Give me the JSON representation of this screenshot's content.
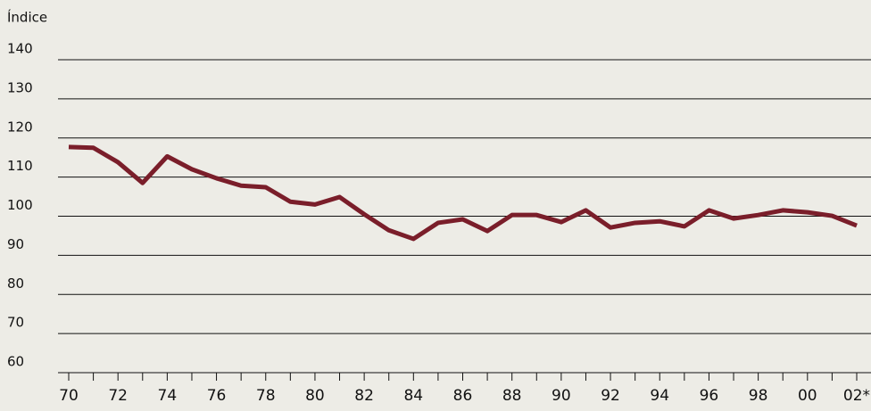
{
  "chart_data": {
    "type": "line",
    "y_label": "Índice",
    "categories": [
      "70",
      null,
      "72",
      null,
      "74",
      null,
      "76",
      null,
      "78",
      null,
      "80",
      null,
      "82",
      null,
      "84",
      null,
      "86",
      null,
      "88",
      null,
      "90",
      null,
      "92",
      null,
      "94",
      null,
      "96",
      null,
      "98",
      null,
      "00",
      null,
      "02*"
    ],
    "series": [
      {
        "name": "Índice",
        "color": "#7a1e2a",
        "values": [
          117.7,
          117.5,
          113.8,
          108.5,
          115.3,
          112,
          109.7,
          107.8,
          107.4,
          103.7,
          103,
          104.9,
          100.5,
          96.4,
          94.2,
          98.3,
          99.2,
          96.2,
          100.3,
          100.3,
          98.5,
          101.5,
          97.1,
          98.3,
          98.7,
          97.4,
          101.5,
          99.4,
          100.3,
          101.5,
          101,
          100.1,
          97.6
        ]
      }
    ],
    "ylim": [
      60,
      140
    ],
    "yticks": [
      60,
      70,
      80,
      90,
      100,
      110,
      120,
      130,
      140
    ],
    "grid": true
  }
}
